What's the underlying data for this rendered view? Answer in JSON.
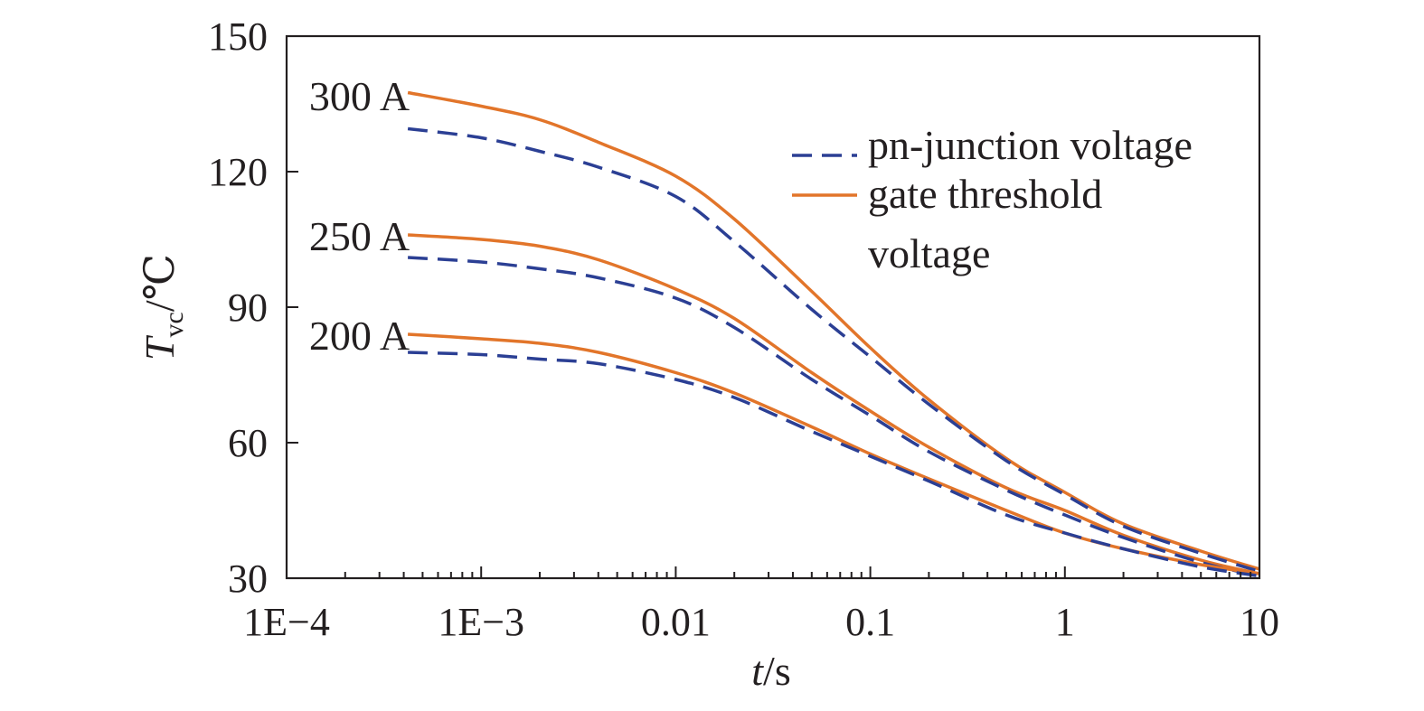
{
  "chart_data": {
    "type": "line",
    "title": "",
    "xscale": "log",
    "xlim": [
      0.0001,
      10
    ],
    "ylim": [
      30,
      150
    ],
    "xlabel": {
      "italic": "t",
      "rest": "/s"
    },
    "ylabel": {
      "italic": "T",
      "sub": "vc",
      "rest": "/℃"
    },
    "x_ticks": [
      {
        "value": 0.0001,
        "label": "1E−4"
      },
      {
        "value": 0.001,
        "label": "1E−3"
      },
      {
        "value": 0.01,
        "label": "0.01"
      },
      {
        "value": 0.1,
        "label": "0.1"
      },
      {
        "value": 1,
        "label": "1"
      },
      {
        "value": 10,
        "label": "10"
      }
    ],
    "y_ticks": [
      {
        "value": 30,
        "label": "30"
      },
      {
        "value": 60,
        "label": "60"
      },
      {
        "value": 90,
        "label": "90"
      },
      {
        "value": 120,
        "label": "120"
      },
      {
        "value": 150,
        "label": "150"
      }
    ],
    "legend": {
      "position": "top-right",
      "entries": [
        {
          "key": "pn",
          "lines": [
            "pn-junction voltage"
          ]
        },
        {
          "key": "gate",
          "lines": [
            "gate threshold",
            "voltage"
          ]
        }
      ]
    },
    "styles": {
      "pn": {
        "color": "#2b3f94",
        "dash": "dashed"
      },
      "gate": {
        "color": "#e2752a",
        "dash": "solid"
      },
      "axis_color": "#231f20"
    },
    "annotations": [
      {
        "text": "300 A",
        "x": 0.00042,
        "y": 137
      },
      {
        "text": "250 A",
        "x": 0.00042,
        "y": 106
      },
      {
        "text": "200 A",
        "x": 0.00042,
        "y": 84
      }
    ],
    "series": [
      {
        "name": "300 A gate threshold voltage",
        "style": "gate",
        "x": [
          0.00042,
          0.001,
          0.002,
          0.004,
          0.01,
          0.02,
          0.05,
          0.1,
          0.2,
          0.5,
          1,
          2,
          5,
          10
        ],
        "y": [
          137.5,
          134.5,
          131.5,
          126.5,
          119,
          109.5,
          93.5,
          81,
          69.5,
          56.5,
          49,
          42,
          36,
          32
        ]
      },
      {
        "name": "300 A pn-junction voltage",
        "style": "pn",
        "x": [
          0.00042,
          0.001,
          0.002,
          0.004,
          0.01,
          0.02,
          0.05,
          0.1,
          0.2,
          0.5,
          1,
          2,
          5,
          10
        ],
        "y": [
          129.5,
          127.5,
          124.5,
          121,
          114.5,
          104.5,
          89.5,
          79,
          68.5,
          56,
          48.5,
          41.5,
          35.5,
          31.5
        ]
      },
      {
        "name": "250 A gate threshold voltage",
        "style": "gate",
        "x": [
          0.00042,
          0.001,
          0.002,
          0.004,
          0.01,
          0.02,
          0.05,
          0.1,
          0.2,
          0.5,
          1,
          2,
          5,
          10
        ],
        "y": [
          106,
          105,
          103.5,
          100.5,
          94,
          87.5,
          75.5,
          67,
          59,
          50,
          45,
          39.5,
          34,
          31
        ]
      },
      {
        "name": "250 A pn-junction voltage",
        "style": "pn",
        "x": [
          0.00042,
          0.001,
          0.002,
          0.004,
          0.01,
          0.02,
          0.05,
          0.1,
          0.2,
          0.5,
          1,
          2,
          5,
          10
        ],
        "y": [
          101,
          100,
          98.5,
          96.5,
          92,
          85.5,
          74,
          66,
          58,
          49.5,
          44,
          39,
          33.5,
          30.5
        ]
      },
      {
        "name": "200 A gate threshold voltage",
        "style": "gate",
        "x": [
          0.00042,
          0.001,
          0.002,
          0.004,
          0.01,
          0.02,
          0.05,
          0.1,
          0.2,
          0.5,
          1,
          2,
          5,
          10
        ],
        "y": [
          84,
          83,
          82,
          80,
          75.5,
          71,
          63.5,
          57.5,
          52,
          45,
          40,
          36.5,
          33,
          31
        ]
      },
      {
        "name": "200 A pn-junction voltage",
        "style": "pn",
        "x": [
          0.00042,
          0.001,
          0.002,
          0.004,
          0.01,
          0.02,
          0.05,
          0.1,
          0.2,
          0.5,
          1,
          2,
          5,
          10
        ],
        "y": [
          80,
          79.5,
          78.5,
          77.5,
          74,
          70,
          62.5,
          57,
          51.5,
          44,
          40,
          36.5,
          32.5,
          30.5
        ]
      }
    ]
  }
}
